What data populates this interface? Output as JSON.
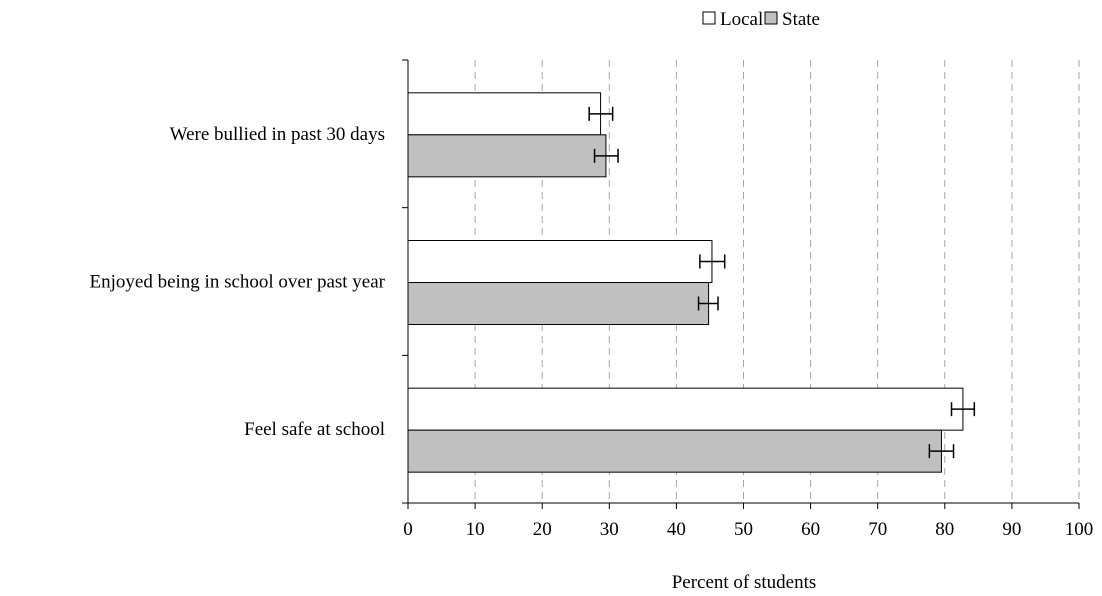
{
  "chart_data": {
    "type": "bar",
    "orientation": "horizontal",
    "title": "",
    "xlabel": "Percent of students",
    "ylabel": "",
    "xlim": [
      0,
      100
    ],
    "xticks": [
      0,
      10,
      20,
      30,
      40,
      50,
      60,
      70,
      80,
      90,
      100
    ],
    "grid": "vertical-dashed",
    "legend_position": "top-right",
    "categories": [
      "Were bullied in past 30 days",
      "Enjoyed being in school over past year",
      "Feel safe at school"
    ],
    "series": [
      {
        "name": "Local",
        "color": "#ffffff",
        "values": [
          28.7,
          45.3,
          82.7
        ],
        "error_low": [
          27.0,
          43.5,
          81.0
        ],
        "error_high": [
          30.5,
          47.2,
          84.4
        ]
      },
      {
        "name": "State",
        "color": "#c0c0c0",
        "values": [
          29.5,
          44.8,
          79.5
        ],
        "error_low": [
          27.8,
          43.3,
          77.7
        ],
        "error_high": [
          31.3,
          46.2,
          81.3
        ]
      }
    ]
  }
}
